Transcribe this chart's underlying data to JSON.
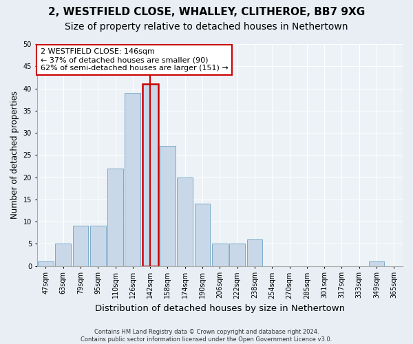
{
  "title1": "2, WESTFIELD CLOSE, WHALLEY, CLITHEROE, BB7 9XG",
  "title2": "Size of property relative to detached houses in Nethertown",
  "xlabel": "Distribution of detached houses by size in Nethertown",
  "ylabel": "Number of detached properties",
  "footnote": "Contains HM Land Registry data © Crown copyright and database right 2024.\nContains public sector information licensed under the Open Government Licence v3.0.",
  "bar_labels": [
    "47sqm",
    "63sqm",
    "79sqm",
    "95sqm",
    "110sqm",
    "126sqm",
    "142sqm",
    "158sqm",
    "174sqm",
    "190sqm",
    "206sqm",
    "222sqm",
    "238sqm",
    "254sqm",
    "270sqm",
    "285sqm",
    "301sqm",
    "317sqm",
    "333sqm",
    "349sqm",
    "365sqm"
  ],
  "bar_values": [
    1,
    5,
    9,
    9,
    22,
    39,
    41,
    27,
    20,
    14,
    5,
    5,
    6,
    0,
    0,
    0,
    0,
    0,
    0,
    1,
    0
  ],
  "highlight_index": 6,
  "bar_color": "#c8d8e8",
  "bar_edge_color": "#7aaac8",
  "highlight_bar_edge_color": "#cc0000",
  "highlight_line_color": "#cc0000",
  "annotation_line1": "2 WESTFIELD CLOSE: 146sqm",
  "annotation_line2": "← 37% of detached houses are smaller (90)",
  "annotation_line3": "62% of semi-detached houses are larger (151) →",
  "annotation_box_color": "#ffffff",
  "annotation_border_color": "#cc0000",
  "bg_color": "#e8eef4",
  "plot_bg_color": "#edf2f7",
  "ylim": [
    0,
    50
  ],
  "yticks": [
    0,
    5,
    10,
    15,
    20,
    25,
    30,
    35,
    40,
    45,
    50
  ],
  "grid_color": "#ffffff",
  "title1_fontsize": 11,
  "title2_fontsize": 10,
  "xlabel_fontsize": 9.5,
  "ylabel_fontsize": 8.5,
  "tick_fontsize": 7,
  "annotation_fontsize": 8,
  "footnote_fontsize": 6
}
